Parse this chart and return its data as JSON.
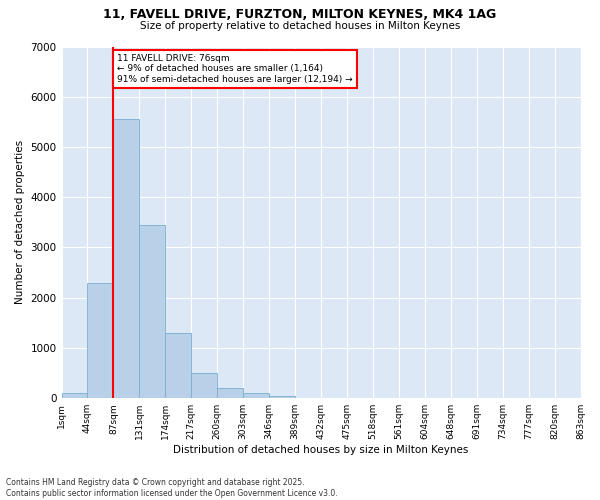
{
  "title": "11, FAVELL DRIVE, FURZTON, MILTON KEYNES, MK4 1AG",
  "subtitle": "Size of property relative to detached houses in Milton Keynes",
  "xlabel": "Distribution of detached houses by size in Milton Keynes",
  "ylabel": "Number of detached properties",
  "bar_values": [
    100,
    2300,
    5550,
    3450,
    1300,
    500,
    200,
    100,
    50,
    0,
    0,
    0,
    0,
    0,
    0,
    0,
    0,
    0,
    0,
    0
  ],
  "bin_labels": [
    "1sqm",
    "44sqm",
    "87sqm",
    "131sqm",
    "174sqm",
    "217sqm",
    "260sqm",
    "303sqm",
    "346sqm",
    "389sqm",
    "432sqm",
    "475sqm",
    "518sqm",
    "561sqm",
    "604sqm",
    "648sqm",
    "691sqm",
    "734sqm",
    "777sqm",
    "820sqm",
    "863sqm"
  ],
  "bar_color": "#b8d0e8",
  "bar_edge_color": "#7aaed0",
  "vline_index": 1.5,
  "property_line_label": "11 FAVELL DRIVE: 76sqm",
  "annotation_line1": "← 9% of detached houses are smaller (1,164)",
  "annotation_line2": "91% of semi-detached houses are larger (12,194) →",
  "vline_color": "red",
  "ylim": [
    0,
    7000
  ],
  "yticks": [
    0,
    1000,
    2000,
    3000,
    4000,
    5000,
    6000,
    7000
  ],
  "background_color": "#dce8f5",
  "footer_line1": "Contains HM Land Registry data © Crown copyright and database right 2025.",
  "footer_line2": "Contains public sector information licensed under the Open Government Licence v3.0."
}
